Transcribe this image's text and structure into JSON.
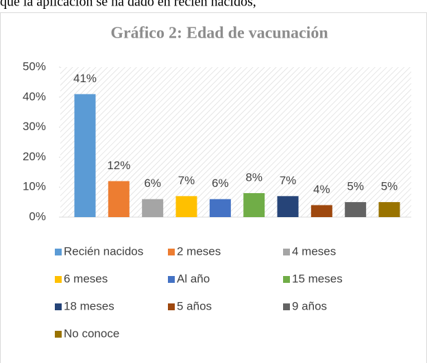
{
  "header_text": "que la aplicación se ha dado en recién nacidos,",
  "chart_data": {
    "type": "bar",
    "title": "Gráfico 2: Edad de vacunación",
    "categories": [
      "Recién nacidos",
      "2 meses",
      "4 meses",
      "6 meses",
      "Al año",
      "15 meses",
      "18 meses",
      "5 años",
      "9 años",
      "No conoce"
    ],
    "values": [
      41,
      12,
      6,
      7,
      6,
      8,
      7,
      4,
      5,
      5
    ],
    "value_labels": [
      "41%",
      "12%",
      "6%",
      "7%",
      "6%",
      "8%",
      "7%",
      "4%",
      "5%",
      "5%"
    ],
    "colors": [
      "#5b9bd5",
      "#ed7d31",
      "#a5a5a5",
      "#ffc000",
      "#4472c4",
      "#70ad47",
      "#264478",
      "#9e480e",
      "#636363",
      "#997300"
    ],
    "ylim": [
      0,
      50
    ],
    "yticks": [
      {
        "value": 0,
        "label": "0%"
      },
      {
        "value": 10,
        "label": "10%"
      },
      {
        "value": 20,
        "label": "20%"
      },
      {
        "value": 30,
        "label": "30%"
      },
      {
        "value": 40,
        "label": "40%"
      },
      {
        "value": 50,
        "label": "50%"
      }
    ],
    "legend": "bottom"
  }
}
